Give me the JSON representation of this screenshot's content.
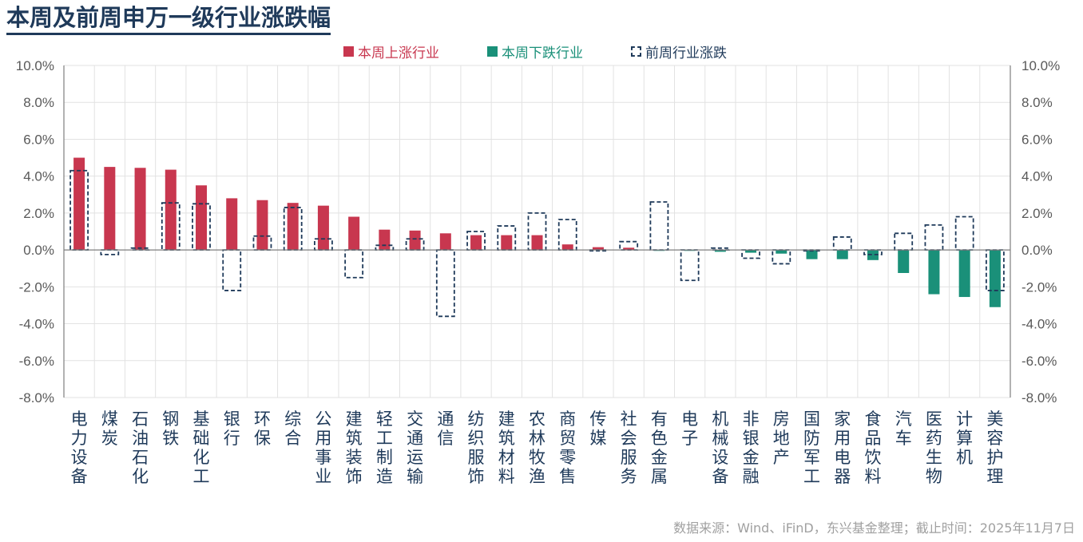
{
  "title": "本周及前周申万一级行业涨跌幅",
  "source": "数据来源：Wind、iFinD，东兴基金整理；截止时间：2025年11月7日",
  "colors": {
    "up": "#c8374f",
    "down": "#1a9079",
    "prev": "#1f3a5a",
    "title": "#1f3a5a"
  },
  "chart_data": {
    "type": "bar",
    "legend": [
      "本周上涨行业",
      "本周下跌行业",
      "前周行业涨跌"
    ],
    "legend_position": "top-center",
    "grid": true,
    "ylim": [
      -8,
      10
    ],
    "yticks": [
      "10.0%",
      "8.0%",
      "6.0%",
      "4.0%",
      "2.0%",
      "0.0%",
      "-2.0%",
      "-4.0%",
      "-6.0%",
      "-8.0%"
    ],
    "categories": [
      "电力设备",
      "煤炭",
      "石油石化",
      "钢铁",
      "基础化工",
      "银行",
      "环保",
      "综合",
      "公用事业",
      "建筑装饰",
      "轻工制造",
      "交通运输",
      "通信",
      "纺织服饰",
      "建筑材料",
      "农林牧渔",
      "商贸零售",
      "传媒",
      "社会服务",
      "有色金属",
      "电子",
      "机械设备",
      "非银金融",
      "房地产",
      "国防军工",
      "家用电器",
      "食品饮料",
      "汽车",
      "医药生物",
      "计算机",
      "美容护理"
    ],
    "series": [
      {
        "name": "本周",
        "values": [
          5.0,
          4.5,
          4.45,
          4.35,
          3.5,
          2.8,
          2.7,
          2.55,
          2.4,
          1.8,
          1.1,
          1.05,
          0.9,
          0.8,
          0.8,
          0.8,
          0.3,
          0.15,
          0.12,
          -0.05,
          -0.05,
          -0.1,
          -0.15,
          -0.2,
          -0.5,
          -0.5,
          -0.55,
          -1.25,
          -2.4,
          -2.55,
          -3.1
        ]
      },
      {
        "name": "前周",
        "values": [
          4.3,
          -0.25,
          0.1,
          2.55,
          2.5,
          -2.2,
          0.75,
          2.3,
          0.6,
          -1.5,
          0.25,
          0.6,
          -3.6,
          1.0,
          1.3,
          2.0,
          1.65,
          -0.05,
          0.45,
          2.6,
          -1.65,
          0.1,
          -0.45,
          -0.75,
          -0.05,
          0.7,
          -0.25,
          0.9,
          1.35,
          1.8,
          -2.2
        ]
      }
    ]
  }
}
